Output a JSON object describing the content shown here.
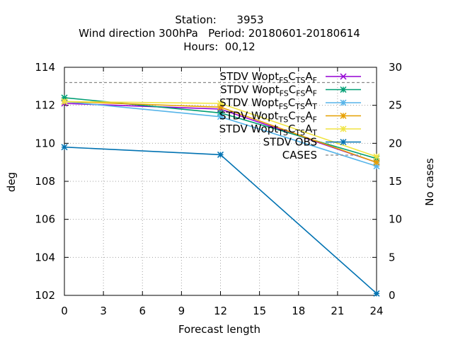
{
  "title": {
    "line1": "Station:      3953",
    "line2": "Wind direction 300hPa   Period: 20180601-20180614",
    "line3": "Hours:  00,12"
  },
  "chart_data": {
    "type": "line",
    "x": [
      0,
      12,
      24
    ],
    "xlabel": "Forecast length",
    "ylabel": "deg",
    "y2label": "No cases",
    "xlim": [
      0,
      24
    ],
    "ylim": [
      102,
      114
    ],
    "y2lim": [
      0,
      30
    ],
    "xticks": [
      "0",
      "3",
      "6",
      "9",
      "12",
      "15",
      "18",
      "21",
      "24"
    ],
    "yticks": [
      "102",
      "104",
      "106",
      "108",
      "110",
      "112",
      "114"
    ],
    "y2ticks": [
      "0",
      "5",
      "10",
      "15",
      "20",
      "25",
      "30"
    ],
    "grid": true,
    "legend_position": "top-right",
    "series": [
      {
        "legend": {
          "pre": "STDV Wopt",
          "parts": [
            {
              "sub": "FS"
            },
            {
              "text": "C"
            },
            {
              "sub": "TS"
            },
            {
              "text": "A"
            },
            {
              "sub": "F"
            }
          ]
        },
        "color": "#9400d3",
        "marker": "x",
        "axis": "y1",
        "values": [
          112.1,
          111.8,
          109.0
        ]
      },
      {
        "legend": {
          "pre": "STDV Wopt",
          "parts": [
            {
              "sub": "FS"
            },
            {
              "text": "C"
            },
            {
              "sub": "FS"
            },
            {
              "text": "A"
            },
            {
              "sub": "F"
            }
          ]
        },
        "color": "#009e73",
        "marker": "star",
        "axis": "y1",
        "values": [
          112.4,
          111.6,
          109.2
        ]
      },
      {
        "legend": {
          "pre": "STDV Wopt",
          "parts": [
            {
              "sub": "FS"
            },
            {
              "text": "C"
            },
            {
              "sub": "TS"
            },
            {
              "text": "A"
            },
            {
              "sub": "T"
            }
          ]
        },
        "color": "#56b4e9",
        "marker": "star",
        "axis": "y1",
        "values": [
          112.2,
          111.4,
          108.8
        ]
      },
      {
        "legend": {
          "pre": "STDV Wopt",
          "parts": [
            {
              "sub": "TS"
            },
            {
              "text": "C"
            },
            {
              "sub": "TS"
            },
            {
              "text": "A"
            },
            {
              "sub": "F"
            }
          ]
        },
        "color": "#e69f00",
        "marker": "star",
        "axis": "y1",
        "values": [
          112.2,
          111.9,
          109.0
        ]
      },
      {
        "legend": {
          "pre": "STDV Wopt",
          "parts": [
            {
              "sub": "TS"
            },
            {
              "text": "C"
            },
            {
              "sub": "TS"
            },
            {
              "text": "A"
            },
            {
              "sub": "T"
            }
          ]
        },
        "color": "#f0e442",
        "marker": "star",
        "axis": "y1",
        "values": [
          112.2,
          112.1,
          109.3
        ]
      },
      {
        "legend": {
          "pre": "STDV OBS",
          "parts": []
        },
        "color": "#0072b2",
        "marker": "star",
        "axis": "y1",
        "values": [
          109.8,
          109.4,
          102.1
        ]
      },
      {
        "legend": {
          "pre": "CASES",
          "parts": []
        },
        "color": "#888888",
        "marker": "none",
        "dashed": true,
        "axis": "y2",
        "values": [
          28,
          28,
          28
        ]
      }
    ]
  }
}
